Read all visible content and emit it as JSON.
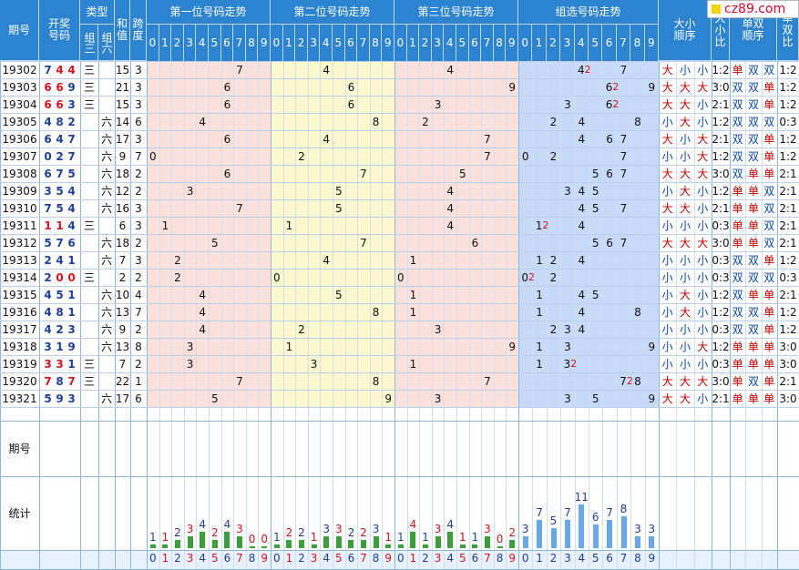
{
  "logo": {
    "text": "cz89.com"
  },
  "header": {
    "period": "期号",
    "draw": "开奖号码",
    "type": "类型",
    "g3": "组三",
    "g6": "组六",
    "sum": "和值",
    "span": "跨度",
    "pos1": "第一位号码走势",
    "pos2": "第二位号码走势",
    "pos3": "第三位号码走势",
    "group": "组选号码走势",
    "bs_order": "大小顺序",
    "bs_ratio": "大小比",
    "oe_order": "单双顺序",
    "oe_ratio": "单双比",
    "digits": [
      "0",
      "1",
      "2",
      "3",
      "4",
      "5",
      "6",
      "7",
      "8",
      "9"
    ]
  },
  "rows": [
    {
      "p": "19302",
      "d": [
        "7",
        "4",
        "4"
      ],
      "hot": [
        0,
        1,
        1
      ],
      "t3": "三",
      "t6": "",
      "sum": "15",
      "span": "3",
      "bs": [
        "大",
        "小",
        "小"
      ],
      "bsr": "1:2",
      "oe": [
        "单",
        "双",
        "双"
      ],
      "oer": "1:2",
      "grp": [
        [
          4,
          "2"
        ],
        [
          7,
          ""
        ]
      ]
    },
    {
      "p": "19303",
      "d": [
        "6",
        "6",
        "9"
      ],
      "hot": [
        1,
        1,
        0
      ],
      "t3": "三",
      "t6": "",
      "sum": "21",
      "span": "3",
      "bs": [
        "大",
        "大",
        "大"
      ],
      "bsr": "3:0",
      "oe": [
        "双",
        "双",
        "单"
      ],
      "oer": "1:2",
      "grp": [
        [
          6,
          "2"
        ],
        [
          9,
          ""
        ]
      ]
    },
    {
      "p": "19304",
      "d": [
        "6",
        "6",
        "3"
      ],
      "hot": [
        1,
        1,
        0
      ],
      "t3": "三",
      "t6": "",
      "sum": "15",
      "span": "3",
      "bs": [
        "大",
        "大",
        "小"
      ],
      "bsr": "2:1",
      "oe": [
        "双",
        "双",
        "单"
      ],
      "oer": "1:2",
      "grp": [
        [
          3,
          ""
        ],
        [
          6,
          "2"
        ]
      ]
    },
    {
      "p": "19305",
      "d": [
        "4",
        "8",
        "2"
      ],
      "hot": [
        0,
        0,
        0
      ],
      "t3": "",
      "t6": "六",
      "sum": "14",
      "span": "6",
      "bs": [
        "小",
        "大",
        "小"
      ],
      "bsr": "1:2",
      "oe": [
        "双",
        "双",
        "双"
      ],
      "oer": "0:3",
      "grp": [
        [
          2,
          ""
        ],
        [
          4,
          ""
        ],
        [
          8,
          ""
        ]
      ]
    },
    {
      "p": "19306",
      "d": [
        "6",
        "4",
        "7"
      ],
      "hot": [
        0,
        0,
        0
      ],
      "t3": "",
      "t6": "六",
      "sum": "17",
      "span": "3",
      "bs": [
        "大",
        "小",
        "大"
      ],
      "bsr": "2:1",
      "oe": [
        "双",
        "双",
        "单"
      ],
      "oer": "1:2",
      "grp": [
        [
          4,
          ""
        ],
        [
          6,
          ""
        ],
        [
          7,
          ""
        ]
      ]
    },
    {
      "p": "19307",
      "d": [
        "0",
        "2",
        "7"
      ],
      "hot": [
        0,
        0,
        0
      ],
      "t3": "",
      "t6": "六",
      "sum": "9",
      "span": "7",
      "bs": [
        "小",
        "小",
        "大"
      ],
      "bsr": "1:2",
      "oe": [
        "双",
        "双",
        "单"
      ],
      "oer": "1:2",
      "grp": [
        [
          0,
          ""
        ],
        [
          2,
          ""
        ],
        [
          7,
          ""
        ]
      ]
    },
    {
      "p": "19308",
      "d": [
        "6",
        "7",
        "5"
      ],
      "hot": [
        0,
        0,
        0
      ],
      "t3": "",
      "t6": "六",
      "sum": "18",
      "span": "2",
      "bs": [
        "大",
        "大",
        "大"
      ],
      "bsr": "3:0",
      "oe": [
        "双",
        "单",
        "单"
      ],
      "oer": "2:1",
      "grp": [
        [
          5,
          ""
        ],
        [
          6,
          ""
        ],
        [
          7,
          ""
        ]
      ]
    },
    {
      "p": "19309",
      "d": [
        "3",
        "5",
        "4"
      ],
      "hot": [
        0,
        0,
        0
      ],
      "t3": "",
      "t6": "六",
      "sum": "12",
      "span": "2",
      "bs": [
        "小",
        "大",
        "小"
      ],
      "bsr": "1:2",
      "oe": [
        "单",
        "单",
        "双"
      ],
      "oer": "2:1",
      "grp": [
        [
          3,
          ""
        ],
        [
          4,
          ""
        ],
        [
          5,
          ""
        ]
      ]
    },
    {
      "p": "19310",
      "d": [
        "7",
        "5",
        "4"
      ],
      "hot": [
        0,
        0,
        0
      ],
      "t3": "",
      "t6": "六",
      "sum": "16",
      "span": "3",
      "bs": [
        "大",
        "大",
        "小"
      ],
      "bsr": "2:1",
      "oe": [
        "单",
        "单",
        "双"
      ],
      "oer": "2:1",
      "grp": [
        [
          4,
          ""
        ],
        [
          5,
          ""
        ],
        [
          7,
          ""
        ]
      ]
    },
    {
      "p": "19311",
      "d": [
        "1",
        "1",
        "4"
      ],
      "hot": [
        1,
        1,
        0
      ],
      "t3": "三",
      "t6": "",
      "sum": "6",
      "span": "3",
      "bs": [
        "小",
        "小",
        "小"
      ],
      "bsr": "0:3",
      "oe": [
        "单",
        "单",
        "双"
      ],
      "oer": "2:1",
      "grp": [
        [
          1,
          "2"
        ],
        [
          4,
          ""
        ]
      ]
    },
    {
      "p": "19312",
      "d": [
        "5",
        "7",
        "6"
      ],
      "hot": [
        0,
        0,
        0
      ],
      "t3": "",
      "t6": "六",
      "sum": "18",
      "span": "2",
      "bs": [
        "大",
        "大",
        "大"
      ],
      "bsr": "3:0",
      "oe": [
        "单",
        "单",
        "双"
      ],
      "oer": "2:1",
      "grp": [
        [
          5,
          ""
        ],
        [
          6,
          ""
        ],
        [
          7,
          ""
        ]
      ]
    },
    {
      "p": "19313",
      "d": [
        "2",
        "4",
        "1"
      ],
      "hot": [
        0,
        0,
        0
      ],
      "t3": "",
      "t6": "六",
      "sum": "7",
      "span": "3",
      "bs": [
        "小",
        "小",
        "小"
      ],
      "bsr": "0:3",
      "oe": [
        "双",
        "双",
        "单"
      ],
      "oer": "1:2",
      "grp": [
        [
          1,
          ""
        ],
        [
          2,
          ""
        ],
        [
          4,
          ""
        ]
      ]
    },
    {
      "p": "19314",
      "d": [
        "2",
        "0",
        "0"
      ],
      "hot": [
        0,
        1,
        1
      ],
      "t3": "三",
      "t6": "",
      "sum": "2",
      "span": "2",
      "bs": [
        "小",
        "小",
        "小"
      ],
      "bsr": "0:3",
      "oe": [
        "双",
        "双",
        "双"
      ],
      "oer": "0:3",
      "grp": [
        [
          0,
          "2"
        ],
        [
          2,
          ""
        ]
      ]
    },
    {
      "p": "19315",
      "d": [
        "4",
        "5",
        "1"
      ],
      "hot": [
        0,
        0,
        0
      ],
      "t3": "",
      "t6": "六",
      "sum": "10",
      "span": "4",
      "bs": [
        "小",
        "大",
        "小"
      ],
      "bsr": "1:2",
      "oe": [
        "双",
        "单",
        "单"
      ],
      "oer": "2:1",
      "grp": [
        [
          1,
          ""
        ],
        [
          4,
          ""
        ],
        [
          5,
          ""
        ]
      ]
    },
    {
      "p": "19316",
      "d": [
        "4",
        "8",
        "1"
      ],
      "hot": [
        0,
        0,
        0
      ],
      "t3": "",
      "t6": "六",
      "sum": "13",
      "span": "7",
      "bs": [
        "小",
        "大",
        "小"
      ],
      "bsr": "1:2",
      "oe": [
        "双",
        "双",
        "单"
      ],
      "oer": "1:2",
      "grp": [
        [
          1,
          ""
        ],
        [
          4,
          ""
        ],
        [
          8,
          ""
        ]
      ]
    },
    {
      "p": "19317",
      "d": [
        "4",
        "2",
        "3"
      ],
      "hot": [
        0,
        0,
        0
      ],
      "t3": "",
      "t6": "六",
      "sum": "9",
      "span": "2",
      "bs": [
        "小",
        "小",
        "小"
      ],
      "bsr": "0:3",
      "oe": [
        "双",
        "双",
        "单"
      ],
      "oer": "1:2",
      "grp": [
        [
          2,
          ""
        ],
        [
          3,
          ""
        ],
        [
          4,
          ""
        ]
      ]
    },
    {
      "p": "19318",
      "d": [
        "3",
        "1",
        "9"
      ],
      "hot": [
        0,
        0,
        0
      ],
      "t3": "",
      "t6": "六",
      "sum": "13",
      "span": "8",
      "bs": [
        "小",
        "小",
        "大"
      ],
      "bsr": "1:2",
      "oe": [
        "单",
        "单",
        "单"
      ],
      "oer": "3:0",
      "grp": [
        [
          1,
          ""
        ],
        [
          3,
          ""
        ],
        [
          9,
          ""
        ]
      ]
    },
    {
      "p": "19319",
      "d": [
        "3",
        "3",
        "1"
      ],
      "hot": [
        1,
        1,
        0
      ],
      "t3": "三",
      "t6": "",
      "sum": "7",
      "span": "2",
      "bs": [
        "小",
        "小",
        "小"
      ],
      "bsr": "0:3",
      "oe": [
        "单",
        "单",
        "单"
      ],
      "oer": "3:0",
      "grp": [
        [
          1,
          ""
        ],
        [
          3,
          "2"
        ]
      ]
    },
    {
      "p": "19320",
      "d": [
        "7",
        "8",
        "7"
      ],
      "hot": [
        1,
        0,
        1
      ],
      "t3": "三",
      "t6": "",
      "sum": "22",
      "span": "1",
      "bs": [
        "大",
        "大",
        "大"
      ],
      "bsr": "3:0",
      "oe": [
        "单",
        "双",
        "单"
      ],
      "oer": "2:1",
      "grp": [
        [
          7,
          "2"
        ],
        [
          8,
          ""
        ]
      ]
    },
    {
      "p": "19321",
      "d": [
        "5",
        "9",
        "3"
      ],
      "hot": [
        0,
        0,
        0
      ],
      "t3": "",
      "t6": "六",
      "sum": "17",
      "span": "6",
      "bs": [
        "大",
        "大",
        "小"
      ],
      "bsr": "2:1",
      "oe": [
        "单",
        "单",
        "单"
      ],
      "oer": "3:0",
      "grp": [
        [
          3,
          ""
        ],
        [
          5,
          ""
        ],
        [
          9,
          ""
        ]
      ]
    }
  ],
  "stats": {
    "label": "统计",
    "pos1": [
      1,
      1,
      2,
      3,
      4,
      2,
      4,
      3,
      0,
      0
    ],
    "pos2": [
      1,
      2,
      2,
      1,
      3,
      3,
      2,
      2,
      3,
      1
    ],
    "pos3": [
      1,
      4,
      1,
      3,
      4,
      1,
      1,
      3,
      0,
      2
    ],
    "group": [
      3,
      7,
      5,
      7,
      11,
      6,
      7,
      8,
      3,
      3
    ]
  },
  "footer": {
    "period": "期号"
  }
}
